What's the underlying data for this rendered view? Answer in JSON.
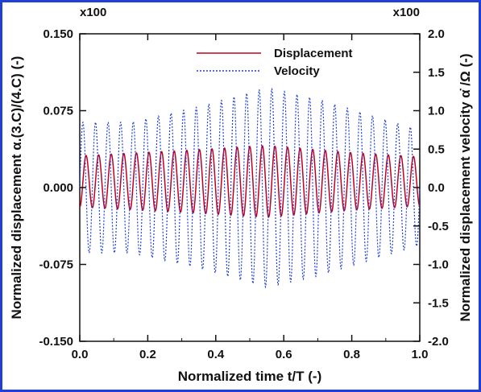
{
  "chart_data": {
    "type": "line",
    "xlabel": "Normalized time t/T (-)",
    "ylabel_left": "Normalized displacement α.(3.C)/(4.C) (-)",
    "ylabel_right": "Normalized displacement velocity α̇ /Ω (-)",
    "multiplier_left": "x100",
    "multiplier_right": "x100",
    "xlim": [
      0,
      1
    ],
    "ylim_left": [
      -0.15,
      0.15
    ],
    "ylim_right": [
      -2.0,
      2.0
    ],
    "x_ticks": [
      "0.0",
      "0.2",
      "0.4",
      "0.6",
      "0.8",
      "1.0"
    ],
    "y_left_ticks": [
      "0.150",
      "0.075",
      "0.000",
      "-0.075",
      "-0.150"
    ],
    "y_right_ticks": [
      "2.0",
      "1.5",
      "1.0",
      "0.5",
      "0.0",
      "-0.5",
      "-1.0",
      "-1.5",
      "-2.0"
    ],
    "legend_position": "top-center",
    "series": [
      {
        "name": "Displacement",
        "axis": "left",
        "style": "solid",
        "color": "#c0001f",
        "cycles": 27,
        "mean": 0.006,
        "amplitude": [
          [
            0.0,
            0.025
          ],
          [
            0.3,
            0.03
          ],
          [
            0.55,
            0.035
          ],
          [
            0.8,
            0.028
          ],
          [
            1.0,
            0.024
          ]
        ]
      },
      {
        "name": "Velocity",
        "axis": "right",
        "style": "dotted",
        "color": "#1f3fd6",
        "cycles": 27,
        "mean": 0.0,
        "amplitude": [
          [
            0.0,
            0.85
          ],
          [
            0.15,
            0.85
          ],
          [
            0.35,
            1.05
          ],
          [
            0.55,
            1.3
          ],
          [
            0.7,
            1.15
          ],
          [
            0.85,
            0.95
          ],
          [
            1.0,
            0.75
          ]
        ]
      }
    ]
  }
}
